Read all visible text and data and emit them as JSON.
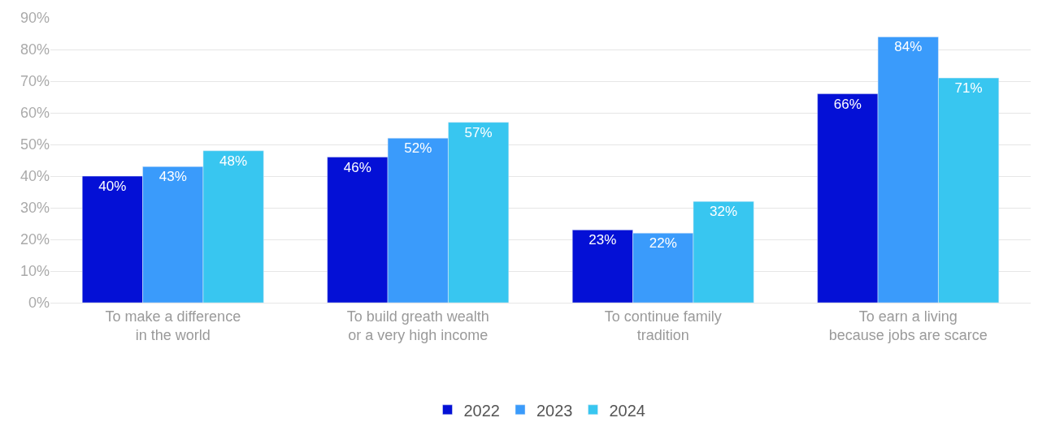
{
  "chart_data": {
    "type": "bar",
    "categories": [
      "To make a difference\nin the world",
      "To build greath wealth\nor a very high income",
      "To continue family\ntradition",
      "To earn a living\nbecause jobs are scarce"
    ],
    "series": [
      {
        "name": "2022",
        "color": "#0410d6",
        "values": [
          40,
          46,
          23,
          66
        ],
        "value_labels": [
          "40%",
          "46%",
          "23%",
          "66%"
        ]
      },
      {
        "name": "2023",
        "color": "#3a9bfb",
        "values": [
          43,
          52,
          22,
          84
        ],
        "value_labels": [
          "43%",
          "52%",
          "22%",
          "84%"
        ]
      },
      {
        "name": "2024",
        "color": "#38c6f0",
        "values": [
          48,
          57,
          32,
          71
        ],
        "value_labels": [
          "48%",
          "57%",
          "32%",
          "71%"
        ]
      }
    ],
    "ylim": [
      0,
      90
    ],
    "yticks": [
      {
        "value": 0,
        "label": "0%"
      },
      {
        "value": 10,
        "label": "10%"
      },
      {
        "value": 20,
        "label": "20%"
      },
      {
        "value": 30,
        "label": "30%"
      },
      {
        "value": 40,
        "label": "40%"
      },
      {
        "value": 50,
        "label": "50%"
      },
      {
        "value": 60,
        "label": "60%"
      },
      {
        "value": 70,
        "label": "70%"
      },
      {
        "value": 80,
        "label": "80%"
      },
      {
        "value": 90,
        "label": "90%"
      }
    ],
    "grid": "y",
    "legend": "bottom"
  }
}
